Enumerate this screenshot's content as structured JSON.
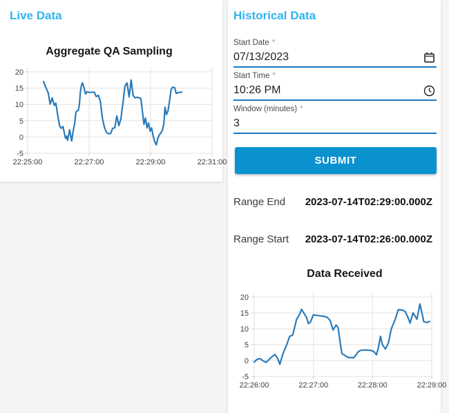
{
  "theme": {
    "accent_blue": "#2fb4f0",
    "button_blue": "#0a92cf",
    "underline_blue": "#1c77bd",
    "series_blue": "#2b7bba"
  },
  "live_panel": {
    "title": "Live Data"
  },
  "historical_panel": {
    "title": "Historical Data",
    "fields": [
      {
        "label": "Start Date",
        "required_mark": "*",
        "value": "07/13/2023",
        "icon": "calendar-icon"
      },
      {
        "label": "Start Time",
        "required_mark": "*",
        "value": "10:26 PM",
        "icon": "clock-icon"
      },
      {
        "label": "Window (minutes)",
        "required_mark": "*",
        "value": "3",
        "icon": null
      }
    ],
    "submit_label": "SUBMIT",
    "range_end_label": "Range End",
    "range_end_value": "2023-07-14T02:29:00.000Z",
    "range_start_label": "Range Start",
    "range_start_value": "2023-07-14T02:26:00.000Z"
  },
  "chart_data": [
    {
      "type": "line",
      "title": "Aggregate QA Sampling",
      "xlabel": "",
      "ylabel": "",
      "ylim": [
        -5,
        20
      ],
      "y_ticks": [
        -5,
        0,
        5,
        10,
        15,
        20
      ],
      "x_domain": [
        0,
        360
      ],
      "x_tick_pos": [
        0,
        120,
        240,
        360
      ],
      "x_tick_labels": [
        "22:25:00",
        "22:27:00",
        "22:29:00",
        "22:31:00"
      ],
      "grid": true,
      "legend": false,
      "line_color": "#2b7bba",
      "points_format": "[seconds after 22:25:00, value]",
      "points": [
        [
          31,
          17
        ],
        [
          35,
          15.4
        ],
        [
          40,
          13.6
        ],
        [
          44,
          10.1
        ],
        [
          48,
          12
        ],
        [
          52,
          9.7
        ],
        [
          55,
          10.4
        ],
        [
          60,
          5.5
        ],
        [
          63,
          3.2
        ],
        [
          66,
          2.7
        ],
        [
          69,
          3.2
        ],
        [
          72,
          1.0
        ],
        [
          74,
          -0.4
        ],
        [
          76,
          0.3
        ],
        [
          78,
          -1.0
        ],
        [
          80,
          0.5
        ],
        [
          82,
          2.2
        ],
        [
          84,
          0.4
        ],
        [
          86,
          -1.2
        ],
        [
          88,
          1.0
        ],
        [
          90,
          2.8
        ],
        [
          92,
          4.2
        ],
        [
          94,
          7.4
        ],
        [
          96,
          8.0
        ],
        [
          99,
          8.2
        ],
        [
          101,
          10.0
        ],
        [
          103,
          13.9
        ],
        [
          105,
          15.9
        ],
        [
          107,
          16.6
        ],
        [
          110,
          15.2
        ],
        [
          113,
          13.2
        ],
        [
          116,
          13.9
        ],
        [
          120,
          13.7
        ],
        [
          125,
          13.7
        ],
        [
          130,
          13.8
        ],
        [
          134,
          12.4
        ],
        [
          138,
          12.8
        ],
        [
          142,
          10.9
        ],
        [
          146,
          5.7
        ],
        [
          150,
          2.9
        ],
        [
          154,
          1.4
        ],
        [
          158,
          1.0
        ],
        [
          162,
          1.1
        ],
        [
          166,
          2.7
        ],
        [
          170,
          2.8
        ],
        [
          174,
          6.5
        ],
        [
          178,
          3.5
        ],
        [
          182,
          5.6
        ],
        [
          186,
          10.5
        ],
        [
          190,
          15.6
        ],
        [
          194,
          16.6
        ],
        [
          198,
          12.3
        ],
        [
          202,
          17.5
        ],
        [
          206,
          12.7
        ],
        [
          210,
          12.0
        ],
        [
          214,
          12.2
        ],
        [
          218,
          12.0
        ],
        [
          221,
          11.8
        ],
        [
          224,
          8.0
        ],
        [
          227,
          3.9
        ],
        [
          230,
          5.8
        ],
        [
          233,
          2.8
        ],
        [
          236,
          4.3
        ],
        [
          239,
          1.8
        ],
        [
          242,
          2.8
        ],
        [
          245,
          0.3
        ],
        [
          248,
          -1.4
        ],
        [
          251,
          -2.4
        ],
        [
          254,
          -0.5
        ],
        [
          257,
          0.7
        ],
        [
          260,
          1.2
        ],
        [
          263,
          2.1
        ],
        [
          266,
          4.2
        ],
        [
          268,
          9.1
        ],
        [
          271,
          6.9
        ],
        [
          274,
          8.0
        ],
        [
          277,
          11.0
        ],
        [
          280,
          14.6
        ],
        [
          283,
          15.3
        ],
        [
          287,
          15.1
        ],
        [
          290,
          13.4
        ],
        [
          294,
          13.6
        ],
        [
          298,
          13.7
        ],
        [
          301,
          13.8
        ]
      ]
    },
    {
      "type": "line",
      "title": "Data Received",
      "xlabel": "",
      "ylabel": "",
      "ylim": [
        -5,
        20
      ],
      "y_ticks": [
        -5,
        0,
        5,
        10,
        15,
        20
      ],
      "x_domain": [
        0,
        180
      ],
      "x_tick_pos": [
        0,
        60,
        120,
        180
      ],
      "x_tick_labels": [
        "22:26:00",
        "22:27:00",
        "22:28:00",
        "22:29:00"
      ],
      "grid": true,
      "legend": false,
      "line_color": "#2b7bba",
      "points_format": "[seconds after 22:26:00, value]",
      "points": [
        [
          0,
          -0.5
        ],
        [
          3,
          0.4
        ],
        [
          6,
          0.6
        ],
        [
          9,
          -0.1
        ],
        [
          12,
          -0.6
        ],
        [
          15,
          0.3
        ],
        [
          18,
          1.2
        ],
        [
          21,
          1.9
        ],
        [
          24,
          0.5
        ],
        [
          26,
          -1.2
        ],
        [
          29,
          2.0
        ],
        [
          33,
          5.0
        ],
        [
          36,
          7.6
        ],
        [
          39,
          8.0
        ],
        [
          43,
          13.0
        ],
        [
          46,
          14.5
        ],
        [
          48,
          16.1
        ],
        [
          53,
          13.6
        ],
        [
          55,
          11.6
        ],
        [
          57,
          12.1
        ],
        [
          60,
          14.4
        ],
        [
          64,
          14.2
        ],
        [
          68,
          14.0
        ],
        [
          71,
          13.9
        ],
        [
          74,
          13.6
        ],
        [
          77,
          12.6
        ],
        [
          80,
          9.6
        ],
        [
          83,
          11.2
        ],
        [
          85,
          10.4
        ],
        [
          88,
          4.0
        ],
        [
          89,
          2.1
        ],
        [
          91,
          1.8
        ],
        [
          95,
          1.0
        ],
        [
          98,
          0.9
        ],
        [
          101,
          0.9
        ],
        [
          103,
          1.6
        ],
        [
          105,
          2.6
        ],
        [
          107,
          3.1
        ],
        [
          111,
          3.3
        ],
        [
          114,
          3.3
        ],
        [
          118,
          3.2
        ],
        [
          121,
          2.9
        ],
        [
          124,
          1.8
        ],
        [
          126,
          4.2
        ],
        [
          128,
          7.6
        ],
        [
          130,
          5.0
        ],
        [
          133,
          3.6
        ],
        [
          136,
          5.5
        ],
        [
          139,
          10.0
        ],
        [
          143,
          13.0
        ],
        [
          146,
          16.0
        ],
        [
          150,
          15.9
        ],
        [
          153,
          15.5
        ],
        [
          156,
          13.5
        ],
        [
          158,
          11.8
        ],
        [
          161,
          15.0
        ],
        [
          165,
          13.0
        ],
        [
          168,
          17.8
        ],
        [
          172,
          12.2
        ],
        [
          175,
          12.0
        ],
        [
          178,
          12.3
        ]
      ]
    }
  ]
}
